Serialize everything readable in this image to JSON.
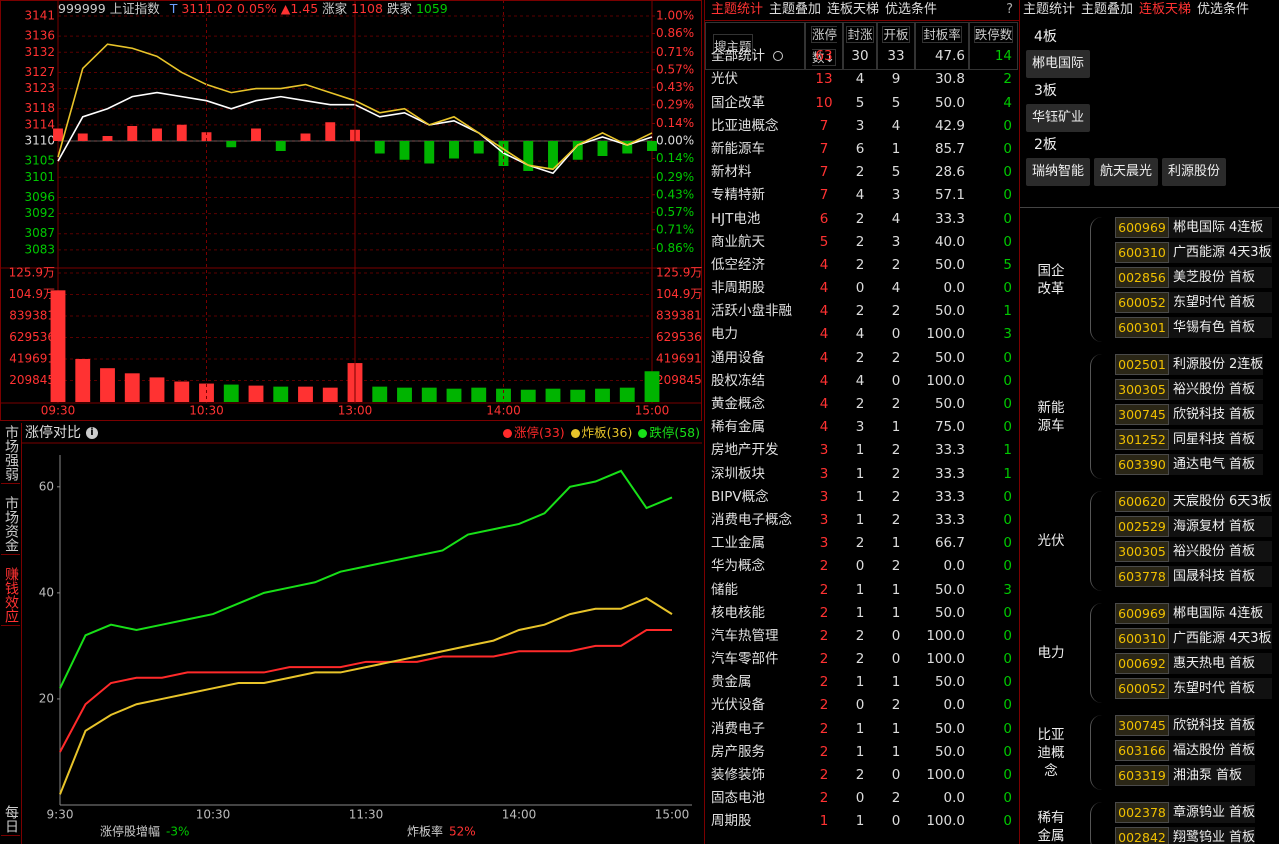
{
  "chart_data": [
    {
      "type": "line",
      "code": "999999",
      "name": "上证指数",
      "flag": "T",
      "price": "3111.02",
      "pct": "0.05%",
      "change": "▲1.45",
      "up_label": "涨家",
      "up": "1108",
      "down_label": "跌家",
      "down": "1059",
      "categories": [
        "09:30",
        null,
        null,
        null,
        null,
        null,
        "10:30",
        null,
        null,
        null,
        null,
        null,
        "13:00",
        null,
        null,
        null,
        null,
        null,
        "14:00",
        null,
        null,
        null,
        null,
        null,
        "15:00"
      ],
      "ylim": [
        3079,
        3141
      ],
      "yticks": [
        3141,
        3136,
        3132,
        3127,
        3123,
        3118,
        3114,
        3110,
        3105,
        3101,
        3096,
        3092,
        3087,
        3083
      ],
      "y2lim": [
        -1.0,
        1.0
      ],
      "y2ticks": [
        {
          "value": 1.0,
          "label": "1.00%"
        },
        {
          "value": 0.86,
          "label": "0.86%"
        },
        {
          "value": 0.71,
          "label": "0.71%"
        },
        {
          "value": 0.57,
          "label": "0.57%"
        },
        {
          "value": 0.43,
          "label": "0.43%"
        },
        {
          "value": 0.29,
          "label": "0.29%"
        },
        {
          "value": 0.14,
          "label": "0.14%"
        },
        {
          "value": 0,
          "label": "0.00%"
        },
        {
          "value": -0.14,
          "label": "0.14%"
        },
        {
          "value": -0.29,
          "label": "0.29%"
        },
        {
          "value": -0.43,
          "label": "0.43%"
        },
        {
          "value": -0.57,
          "label": "0.57%"
        },
        {
          "value": -0.71,
          "label": "0.71%"
        },
        {
          "value": -0.86,
          "label": "0.86%"
        }
      ],
      "series": [
        {
          "color": "#ffffff",
          "values": [
            3105,
            3116,
            3118,
            3121,
            3122,
            3121,
            3120,
            3118,
            3120,
            3121,
            3120,
            3119,
            3119,
            3116,
            3117,
            3114,
            3115,
            3112,
            3107,
            3104,
            3102,
            3109,
            3111,
            3109,
            3111
          ]
        },
        {
          "color": "#e8c42a",
          "values": [
            3106,
            3128,
            3134,
            3133,
            3131,
            3127,
            3124,
            3122,
            3123,
            3123,
            3124,
            3122,
            3120,
            3117,
            3118,
            3114,
            3116,
            3112,
            3108,
            3104,
            3103,
            3109,
            3112,
            3109,
            3112
          ]
        }
      ],
      "bars": {
        "axis": "y2",
        "up_color": "#ff3232",
        "down_color": "#00b400",
        "values": [
          0.1,
          0.06,
          0.04,
          0.12,
          0.1,
          0.13,
          0.07,
          -0.05,
          0.1,
          -0.08,
          0.06,
          0.15,
          0.09,
          -0.1,
          -0.15,
          -0.18,
          -0.14,
          -0.1,
          -0.2,
          -0.24,
          -0.22,
          -0.15,
          -0.12,
          -0.1,
          -0.08
        ]
      },
      "volume": {
        "ylim": [
          0,
          1259071
        ],
        "yticks": [
          {
            "value": 1259071,
            "label": "125.9万"
          },
          {
            "value": 1049226,
            "label": "104.9万"
          },
          839381,
          629536,
          419691,
          209845
        ],
        "values": [
          1090000,
          420000,
          330000,
          280000,
          240000,
          200000,
          180000,
          170000,
          160000,
          150000,
          150000,
          140000,
          380000,
          150000,
          140000,
          140000,
          130000,
          140000,
          130000,
          120000,
          130000,
          120000,
          130000,
          140000,
          300000
        ]
      }
    },
    {
      "type": "line",
      "title": "涨停对比",
      "categories": [
        "9:30",
        null,
        null,
        null,
        null,
        null,
        "10:30",
        null,
        null,
        null,
        null,
        null,
        "11:30",
        null,
        null,
        null,
        null,
        null,
        "14:00",
        null,
        null,
        null,
        null,
        null,
        "15:00"
      ],
      "ylim": [
        0,
        66
      ],
      "yticks": [
        20,
        40,
        60
      ],
      "series": [
        {
          "name": "涨停(33)",
          "color": "#ff2a2a",
          "values": [
            10,
            19,
            23,
            24,
            24,
            25,
            25,
            25,
            25,
            26,
            26,
            26,
            27,
            27,
            27,
            28,
            28,
            28,
            29,
            29,
            29,
            30,
            30,
            33,
            33
          ]
        },
        {
          "name": "炸板(36)",
          "color": "#e8c42a",
          "values": [
            2,
            14,
            17,
            19,
            20,
            21,
            22,
            23,
            23,
            24,
            25,
            25,
            26,
            27,
            28,
            29,
            30,
            31,
            33,
            34,
            36,
            37,
            37,
            39,
            36
          ]
        },
        {
          "name": "跌停(58)",
          "color": "#18e018",
          "values": [
            22,
            32,
            34,
            33,
            34,
            35,
            36,
            38,
            40,
            41,
            42,
            44,
            45,
            46,
            47,
            48,
            51,
            52,
            53,
            55,
            60,
            61,
            63,
            56,
            58
          ]
        }
      ],
      "notes": [
        {
          "label": "涨停股增幅",
          "value": "-3%",
          "color": "#00c800"
        },
        {
          "label": "炸板率",
          "value": "52%",
          "color": "#ff3232"
        }
      ]
    }
  ],
  "side_tabs": [
    "市场强弱",
    "市场资金",
    "赚钱效应",
    "每日"
  ],
  "active_side_tab": 2,
  "theme_panel": {
    "tabs": [
      "主题统计",
      "主题叠加",
      "连板天梯",
      "优选条件"
    ],
    "active_tab": 0,
    "help": "?",
    "headers": [
      "搜主题",
      "涨停数↓",
      "封涨",
      "开板",
      "封板率",
      "跌停数"
    ],
    "rows": [
      [
        "全部统计",
        "63",
        "30",
        "33",
        "47.6",
        "14"
      ],
      [
        "光伏",
        "13",
        "4",
        "9",
        "30.8",
        "2"
      ],
      [
        "国企改革",
        "10",
        "5",
        "5",
        "50.0",
        "4"
      ],
      [
        "比亚迪概念",
        "7",
        "3",
        "4",
        "42.9",
        "0"
      ],
      [
        "新能源车",
        "7",
        "6",
        "1",
        "85.7",
        "0"
      ],
      [
        "新材料",
        "7",
        "2",
        "5",
        "28.6",
        "0"
      ],
      [
        "专精特新",
        "7",
        "4",
        "3",
        "57.1",
        "0"
      ],
      [
        "HJT电池",
        "6",
        "2",
        "4",
        "33.3",
        "0"
      ],
      [
        "商业航天",
        "5",
        "2",
        "3",
        "40.0",
        "0"
      ],
      [
        "低空经济",
        "4",
        "2",
        "2",
        "50.0",
        "5"
      ],
      [
        "非周期股",
        "4",
        "0",
        "4",
        "0.0",
        "0"
      ],
      [
        "活跃小盘非融",
        "4",
        "2",
        "2",
        "50.0",
        "1"
      ],
      [
        "电力",
        "4",
        "4",
        "0",
        "100.0",
        "3"
      ],
      [
        "通用设备",
        "4",
        "2",
        "2",
        "50.0",
        "0"
      ],
      [
        "股权冻结",
        "4",
        "4",
        "0",
        "100.0",
        "0"
      ],
      [
        "黄金概念",
        "4",
        "2",
        "2",
        "50.0",
        "0"
      ],
      [
        "稀有金属",
        "4",
        "3",
        "1",
        "75.0",
        "0"
      ],
      [
        "房地产开发",
        "3",
        "1",
        "2",
        "33.3",
        "1"
      ],
      [
        "深圳板块",
        "3",
        "1",
        "2",
        "33.3",
        "1"
      ],
      [
        "BIPV概念",
        "3",
        "1",
        "2",
        "33.3",
        "0"
      ],
      [
        "消费电子概念",
        "3",
        "1",
        "2",
        "33.3",
        "0"
      ],
      [
        "工业金属",
        "3",
        "2",
        "1",
        "66.7",
        "0"
      ],
      [
        "华为概念",
        "2",
        "0",
        "2",
        "0.0",
        "0"
      ],
      [
        "储能",
        "2",
        "1",
        "1",
        "50.0",
        "3"
      ],
      [
        "核电核能",
        "2",
        "1",
        "1",
        "50.0",
        "0"
      ],
      [
        "汽车热管理",
        "2",
        "2",
        "0",
        "100.0",
        "0"
      ],
      [
        "汽车零部件",
        "2",
        "2",
        "0",
        "100.0",
        "0"
      ],
      [
        "贵金属",
        "2",
        "1",
        "1",
        "50.0",
        "0"
      ],
      [
        "光伏设备",
        "2",
        "0",
        "2",
        "0.0",
        "0"
      ],
      [
        "消费电子",
        "2",
        "1",
        "1",
        "50.0",
        "0"
      ],
      [
        "房产服务",
        "2",
        "1",
        "1",
        "50.0",
        "0"
      ],
      [
        "装修装饰",
        "2",
        "2",
        "0",
        "100.0",
        "0"
      ],
      [
        "固态电池",
        "2",
        "0",
        "2",
        "0.0",
        "0"
      ],
      [
        "周期股",
        "1",
        "1",
        "0",
        "100.0",
        "0"
      ]
    ]
  },
  "ladder_panel": {
    "tabs": [
      "主题统计",
      "主题叠加",
      "连板天梯",
      "优选条件"
    ],
    "active_tab": 2,
    "levels": [
      {
        "label": "4板",
        "stocks": [
          "郴电国际"
        ]
      },
      {
        "label": "3板",
        "stocks": [
          "华钰矿业"
        ]
      },
      {
        "label": "2板",
        "stocks": [
          "瑞纳智能",
          "航天晨光",
          "利源股份"
        ]
      }
    ],
    "groups": [
      {
        "theme": "国企改革",
        "stocks": [
          {
            "code": "600969",
            "name": "郴电国际",
            "board": "4连板"
          },
          {
            "code": "600310",
            "name": "广西能源",
            "board": "4天3板"
          },
          {
            "code": "002856",
            "name": "美芝股份",
            "board": "首板"
          },
          {
            "code": "600052",
            "name": "东望时代",
            "board": "首板"
          },
          {
            "code": "600301",
            "name": "华锡有色",
            "board": "首板"
          }
        ]
      },
      {
        "theme": "新能源车",
        "stocks": [
          {
            "code": "002501",
            "name": "利源股份",
            "board": "2连板"
          },
          {
            "code": "300305",
            "name": "裕兴股份",
            "board": "首板"
          },
          {
            "code": "300745",
            "name": "欣锐科技",
            "board": "首板"
          },
          {
            "code": "301252",
            "name": "同星科技",
            "board": "首板"
          },
          {
            "code": "603390",
            "name": "通达电气",
            "board": "首板"
          }
        ]
      },
      {
        "theme": "光伏",
        "stocks": [
          {
            "code": "600620",
            "name": "天宸股份",
            "board": "6天3板"
          },
          {
            "code": "002529",
            "name": "海源复材",
            "board": "首板"
          },
          {
            "code": "300305",
            "name": "裕兴股份",
            "board": "首板"
          },
          {
            "code": "603778",
            "name": "国晟科技",
            "board": "首板"
          }
        ]
      },
      {
        "theme": "电力",
        "stocks": [
          {
            "code": "600969",
            "name": "郴电国际",
            "board": "4连板"
          },
          {
            "code": "600310",
            "name": "广西能源",
            "board": "4天3板"
          },
          {
            "code": "000692",
            "name": "惠天热电",
            "board": "首板"
          },
          {
            "code": "600052",
            "name": "东望时代",
            "board": "首板"
          }
        ]
      },
      {
        "theme": "比亚迪概念",
        "stocks": [
          {
            "code": "300745",
            "name": "欣锐科技",
            "board": "首板"
          },
          {
            "code": "603166",
            "name": "福达股份",
            "board": "首板"
          },
          {
            "code": "603319",
            "name": "湘油泵",
            "board": "首板"
          }
        ]
      },
      {
        "theme": "稀有金属",
        "stocks": [
          {
            "code": "002378",
            "name": "章源钨业",
            "board": "首板"
          },
          {
            "code": "002842",
            "name": "翔鹭钨业",
            "board": "首板"
          }
        ]
      }
    ]
  }
}
